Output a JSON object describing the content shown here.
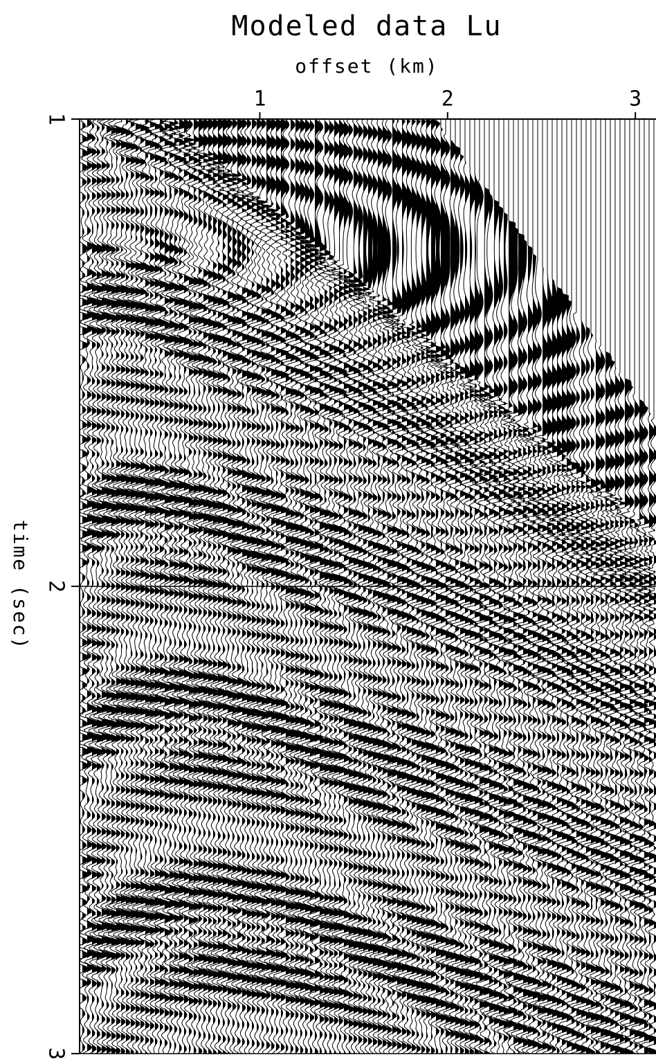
{
  "chart_data": {
    "type": "wiggle",
    "title": "Modeled data Lu",
    "xlabel": "offset (km)",
    "ylabel": "time (sec)",
    "xlim": [
      0.04,
      3.11
    ],
    "xticks": [
      1,
      2,
      3
    ],
    "ylim": [
      1,
      3
    ],
    "yticks": [
      1,
      2,
      3
    ],
    "y_inverted": true,
    "color": "#000000"
  }
}
